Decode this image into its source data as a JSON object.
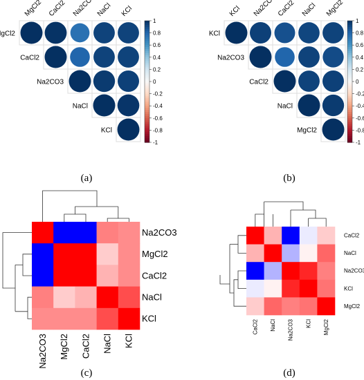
{
  "captions": [
    "(a)",
    "(b)",
    "(c)",
    "(d)"
  ],
  "colorbar": {
    "ticks": [
      "1",
      "0.8",
      "0.6",
      "0.4",
      "0.2",
      "0",
      "-0.2",
      "-0.4",
      "-0.6",
      "-0.8",
      "-1"
    ],
    "high_color": "#053061",
    "mid_color": "#f7f7f7",
    "low_color": "#67001f"
  },
  "chart_data": [
    {
      "type": "heatmap",
      "panel": "a",
      "style": "upper-triangle circles",
      "labels": [
        "MgCl2",
        "CaCl2",
        "Na2CO3",
        "NaCl",
        "KCl"
      ],
      "matrix": [
        [
          1,
          0.99,
          0.75,
          0.93,
          0.93
        ],
        [
          0.99,
          1,
          0.8,
          0.93,
          0.93
        ],
        [
          0.75,
          0.8,
          1,
          0.96,
          0.94
        ],
        [
          0.93,
          0.93,
          0.96,
          1,
          0.98
        ],
        [
          0.93,
          0.93,
          0.94,
          0.98,
          1
        ]
      ],
      "colorbar_range": [
        -1,
        1
      ]
    },
    {
      "type": "heatmap",
      "panel": "b",
      "style": "upper-triangle circles",
      "labels": [
        "KCl",
        "Na2CO3",
        "CaCl2",
        "NaCl",
        "MgCl2"
      ],
      "matrix": [
        [
          1,
          0.94,
          0.88,
          0.92,
          0.93
        ],
        [
          0.94,
          1,
          0.8,
          0.93,
          0.9
        ],
        [
          0.88,
          0.8,
          1,
          0.93,
          0.94
        ],
        [
          0.92,
          0.93,
          0.93,
          1,
          0.96
        ],
        [
          0.93,
          0.9,
          0.94,
          0.96,
          1
        ]
      ],
      "colorbar_range": [
        -1,
        1
      ]
    },
    {
      "type": "heatmap",
      "panel": "c",
      "style": "clustered heatmap with dendrograms",
      "labels": [
        "Na2CO3",
        "MgCl2",
        "CaCl2",
        "NaCl",
        "KCl"
      ],
      "matrix": [
        [
          1,
          -1,
          -1,
          0.5,
          0.45
        ],
        [
          -1,
          1,
          1,
          0.2,
          0.45
        ],
        [
          -1,
          1,
          1,
          0.3,
          0.45
        ],
        [
          0.5,
          0.2,
          0.3,
          1,
          0.7
        ],
        [
          0.45,
          0.45,
          0.45,
          0.7,
          1
        ]
      ]
    },
    {
      "type": "heatmap",
      "panel": "d",
      "style": "clustered heatmap with dendrograms",
      "labels": [
        "CaCl2",
        "NaCl",
        "Na2CO3",
        "KCl",
        "MgCl2"
      ],
      "matrix": [
        [
          1,
          0.3,
          -1,
          -0.08,
          0.2
        ],
        [
          0.3,
          1,
          -0.3,
          0.05,
          0.6
        ],
        [
          -1,
          -0.3,
          1,
          0.85,
          0.5
        ],
        [
          -0.08,
          0.05,
          0.85,
          1,
          0.55
        ],
        [
          0.2,
          0.6,
          0.5,
          0.55,
          1
        ]
      ]
    }
  ]
}
